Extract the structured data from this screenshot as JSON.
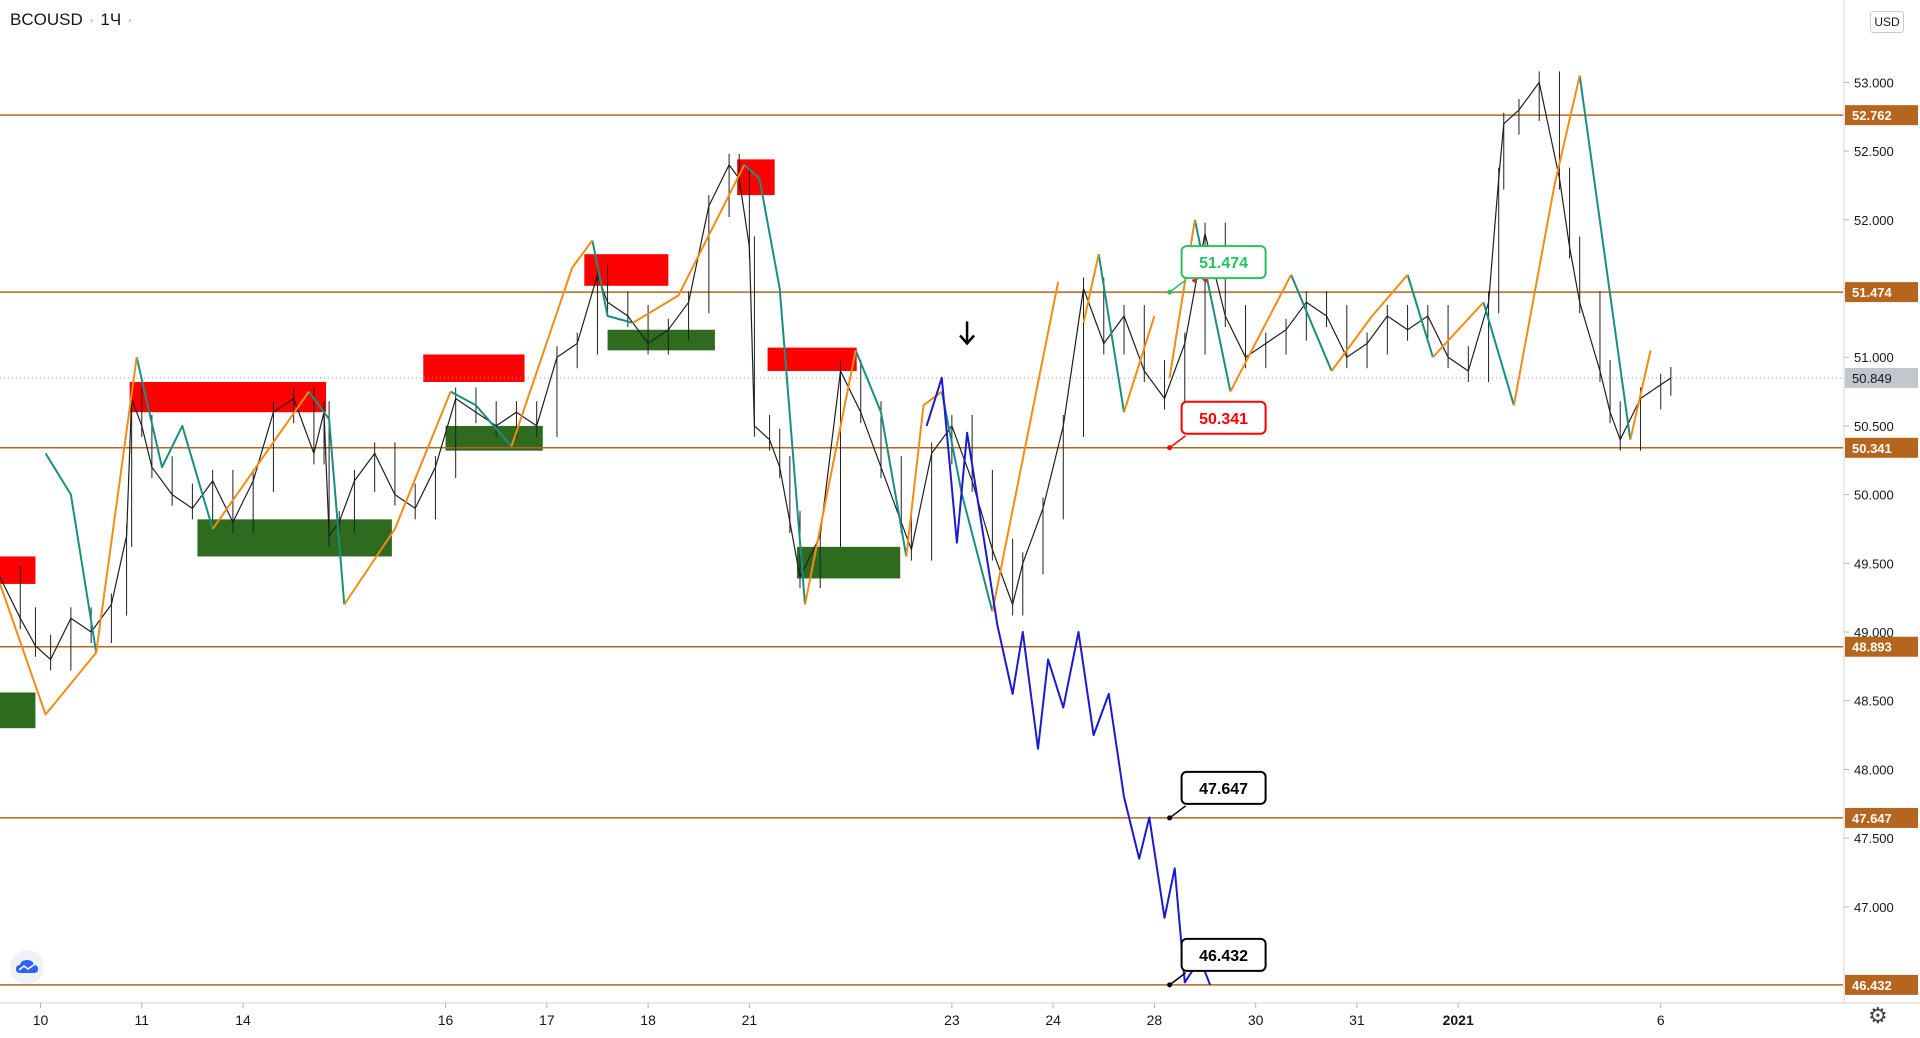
{
  "header": {
    "symbol": "BCOUSD",
    "interval": "1Ч",
    "currency": "USD"
  },
  "icons": {
    "logo": "tradingview-cloud-icon",
    "settings": "gear-icon",
    "arrow": "down-arrow-icon",
    "cancel": "red-x-icon"
  },
  "chart_data": {
    "type": "line",
    "title": "",
    "xlabel": "",
    "ylabel": "",
    "y_tick_labels": [
      "53.000",
      "52.500",
      "52.000",
      "51.500",
      "51.000",
      "50.500",
      "50.000",
      "49.500",
      "49.000",
      "48.500",
      "48.000",
      "47.500",
      "47.000"
    ],
    "y_ticks": [
      53.0,
      52.5,
      52.0,
      51.5,
      51.0,
      50.5,
      50.0,
      49.5,
      49.0,
      48.5,
      48.0,
      47.5,
      47.0
    ],
    "ylim": [
      46.3,
      53.6
    ],
    "x_tick_labels": [
      "10",
      "11",
      "14",
      "16",
      "17",
      "18",
      "21",
      "23",
      "24",
      "28",
      "30",
      "31",
      "2021",
      "6"
    ],
    "x_ticks": [
      0,
      1,
      2,
      4,
      5,
      6,
      7,
      9,
      10,
      11,
      12,
      13,
      14,
      16
    ],
    "xlim": [
      -0.4,
      17.8
    ],
    "current_price": {
      "value": 50.849,
      "label": "50.849"
    },
    "levels": [
      {
        "value": 52.762,
        "label": "52.762"
      },
      {
        "value": 51.474,
        "label": "51.474"
      },
      {
        "value": 50.341,
        "label": "50.341"
      },
      {
        "value": 48.893,
        "label": "48.893"
      },
      {
        "value": 47.647,
        "label": "47.647"
      },
      {
        "value": 46.432,
        "label": "46.432"
      }
    ],
    "callouts": [
      {
        "x": 11.15,
        "y": 51.474,
        "text": "51.474",
        "color": "#22c55e"
      },
      {
        "x": 11.15,
        "y": 50.341,
        "text": "50.341",
        "color": "#ff0000"
      },
      {
        "x": 11.15,
        "y": 47.647,
        "text": "47.647",
        "color": "#000000"
      },
      {
        "x": 11.15,
        "y": 46.432,
        "text": "46.432",
        "color": "#000000"
      }
    ],
    "supply_zones": [
      {
        "x0": -0.4,
        "x1": -0.05,
        "y0": 49.35,
        "y1": 49.55
      },
      {
        "x0": 0.88,
        "x1": 2.82,
        "y0": 50.6,
        "y1": 50.82
      },
      {
        "x0": 3.78,
        "x1": 4.78,
        "y0": 50.82,
        "y1": 51.02
      },
      {
        "x0": 5.37,
        "x1": 6.2,
        "y0": 51.52,
        "y1": 51.75
      },
      {
        "x0": 6.88,
        "x1": 7.25,
        "y0": 52.18,
        "y1": 52.44
      },
      {
        "x0": 7.18,
        "x1": 8.06,
        "y0": 50.9,
        "y1": 51.07
      }
    ],
    "demand_zones": [
      {
        "x0": -0.4,
        "x1": -0.05,
        "y0": 48.3,
        "y1": 48.56
      },
      {
        "x0": 1.55,
        "x1": 3.47,
        "y0": 49.55,
        "y1": 49.82
      },
      {
        "x0": 4.0,
        "x1": 4.96,
        "y0": 50.32,
        "y1": 50.5
      },
      {
        "x0": 5.6,
        "x1": 6.66,
        "y0": 51.05,
        "y1": 51.2
      },
      {
        "x0": 7.47,
        "x1": 8.49,
        "y0": 49.39,
        "y1": 49.62
      }
    ],
    "price_path": {
      "x": [
        -0.4,
        -0.2,
        -0.05,
        0.1,
        0.3,
        0.5,
        0.7,
        0.85,
        0.9,
        1.0,
        1.1,
        1.3,
        1.5,
        1.7,
        1.9,
        2.1,
        2.3,
        2.5,
        2.7,
        2.8,
        2.85,
        2.95,
        3.1,
        3.3,
        3.5,
        3.7,
        3.9,
        4.1,
        4.3,
        4.5,
        4.7,
        4.9,
        5.1,
        5.3,
        5.5,
        5.6,
        5.8,
        6.0,
        6.2,
        6.4,
        6.6,
        6.8,
        6.9,
        7.0,
        7.05,
        7.2,
        7.3,
        7.4,
        7.5,
        7.7,
        7.9,
        8.1,
        8.3,
        8.5,
        8.6,
        8.8,
        9.0,
        9.2,
        9.4,
        9.6,
        9.7,
        9.9,
        10.1,
        10.3,
        10.5,
        10.7,
        10.9,
        11.1,
        11.3,
        11.5,
        11.7,
        11.9,
        12.1,
        12.3,
        12.5,
        12.7,
        12.9,
        13.1,
        13.3,
        13.5,
        13.7,
        13.9,
        14.1,
        14.3,
        14.4,
        14.45,
        14.6,
        14.8,
        15.0,
        15.1,
        15.2,
        15.4,
        15.5,
        15.6,
        15.8,
        16.0,
        16.1
      ],
      "y": [
        49.4,
        49.1,
        48.9,
        48.8,
        49.1,
        49.0,
        49.2,
        49.7,
        50.7,
        50.5,
        50.2,
        50.0,
        49.9,
        50.1,
        49.8,
        50.1,
        50.6,
        50.7,
        50.3,
        50.6,
        49.7,
        49.8,
        50.1,
        50.3,
        50.0,
        49.9,
        50.2,
        50.7,
        50.6,
        50.5,
        50.6,
        50.5,
        51.0,
        51.1,
        51.6,
        51.4,
        51.3,
        51.1,
        51.2,
        51.4,
        52.1,
        52.4,
        52.3,
        51.8,
        50.5,
        50.4,
        50.2,
        49.8,
        49.4,
        49.7,
        50.9,
        50.6,
        50.2,
        49.8,
        49.6,
        50.3,
        50.5,
        50.1,
        49.6,
        49.2,
        49.5,
        49.9,
        50.5,
        51.5,
        51.1,
        51.3,
        50.9,
        50.7,
        51.1,
        51.9,
        51.3,
        51.0,
        51.1,
        51.2,
        51.4,
        51.3,
        51.0,
        51.1,
        51.3,
        51.2,
        51.3,
        51.0,
        50.9,
        51.4,
        52.3,
        52.7,
        52.8,
        53.0,
        52.3,
        51.8,
        51.4,
        50.9,
        50.6,
        50.4,
        50.7,
        50.8,
        50.849
      ]
    },
    "zigzag_up": [
      [
        [
          -0.4,
          49.35
        ],
        [
          0.05,
          48.4
        ],
        [
          0.55,
          48.85
        ],
        [
          0.95,
          51.0
        ]
      ],
      [
        [
          1.7,
          49.75
        ],
        [
          2.65,
          50.75
        ]
      ],
      [
        [
          3.0,
          49.2
        ],
        [
          3.5,
          49.75
        ],
        [
          4.05,
          50.75
        ]
      ],
      [
        [
          4.65,
          50.35
        ],
        [
          5.25,
          51.65
        ],
        [
          5.45,
          51.85
        ]
      ],
      [
        [
          5.85,
          51.25
        ],
        [
          6.3,
          51.45
        ],
        [
          6.95,
          52.4
        ]
      ],
      [
        [
          7.55,
          49.2
        ],
        [
          8.05,
          51.05
        ]
      ],
      [
        [
          8.55,
          49.55
        ],
        [
          8.72,
          50.65
        ],
        [
          8.9,
          50.75
        ]
      ],
      [
        [
          9.4,
          49.15
        ],
        [
          10.05,
          51.55
        ]
      ],
      [
        [
          10.3,
          51.25
        ],
        [
          10.45,
          51.75
        ]
      ],
      [
        [
          10.7,
          50.6
        ],
        [
          11.0,
          51.3
        ]
      ],
      [
        [
          11.15,
          50.85
        ],
        [
          11.4,
          52.0
        ]
      ],
      [
        [
          11.75,
          50.75
        ],
        [
          12.35,
          51.6
        ]
      ],
      [
        [
          12.75,
          50.9
        ],
        [
          13.15,
          51.3
        ],
        [
          13.5,
          51.6
        ]
      ],
      [
        [
          13.75,
          51.0
        ],
        [
          14.25,
          51.4
        ]
      ],
      [
        [
          14.55,
          50.65
        ],
        [
          14.95,
          52.25
        ],
        [
          15.2,
          53.05
        ]
      ],
      [
        [
          15.7,
          50.4
        ],
        [
          15.9,
          51.05
        ]
      ]
    ],
    "zigzag_down": [
      [
        [
          0.05,
          50.3
        ],
        [
          0.3,
          50.0
        ],
        [
          0.55,
          48.85
        ]
      ],
      [
        [
          0.95,
          51.0
        ],
        [
          1.2,
          50.2
        ],
        [
          1.4,
          50.5
        ],
        [
          1.7,
          49.75
        ]
      ],
      [
        [
          2.65,
          50.75
        ],
        [
          2.85,
          50.55
        ],
        [
          3.0,
          49.2
        ]
      ],
      [
        [
          4.05,
          50.75
        ],
        [
          4.3,
          50.65
        ],
        [
          4.65,
          50.35
        ]
      ],
      [
        [
          5.45,
          51.85
        ],
        [
          5.6,
          51.3
        ],
        [
          5.85,
          51.25
        ]
      ],
      [
        [
          6.95,
          52.4
        ],
        [
          7.1,
          52.3
        ],
        [
          7.3,
          51.5
        ],
        [
          7.55,
          49.2
        ]
      ],
      [
        [
          8.05,
          51.05
        ],
        [
          8.3,
          50.6
        ],
        [
          8.55,
          49.55
        ]
      ],
      [
        [
          8.9,
          50.75
        ],
        [
          9.1,
          50.0
        ],
        [
          9.4,
          49.15
        ]
      ],
      [
        [
          10.45,
          51.75
        ],
        [
          10.7,
          50.6
        ]
      ],
      [
        [
          11.4,
          52.0
        ],
        [
          11.75,
          50.75
        ]
      ],
      [
        [
          12.35,
          51.6
        ],
        [
          12.75,
          50.9
        ]
      ],
      [
        [
          13.5,
          51.6
        ],
        [
          13.75,
          51.0
        ]
      ],
      [
        [
          14.25,
          51.4
        ],
        [
          14.55,
          50.65
        ]
      ],
      [
        [
          15.2,
          53.05
        ],
        [
          15.7,
          50.4
        ]
      ]
    ],
    "projection": {
      "x": [
        8.75,
        8.9,
        9.05,
        9.15,
        9.3,
        9.45,
        9.6,
        9.7,
        9.85,
        9.95,
        10.1,
        10.25,
        10.4,
        10.55,
        10.7,
        10.85,
        10.95,
        11.1,
        11.2,
        11.3,
        11.45,
        11.55
      ],
      "y": [
        50.5,
        50.85,
        49.65,
        50.45,
        49.75,
        49.05,
        48.55,
        49.0,
        48.15,
        48.8,
        48.45,
        49.0,
        48.25,
        48.55,
        47.8,
        47.35,
        47.65,
        46.92,
        47.28,
        46.45,
        46.62,
        46.432
      ]
    },
    "annotations": [
      {
        "type": "down-arrow",
        "x": 9.15,
        "y": 51.1
      },
      {
        "type": "x-mark",
        "x": 11.45,
        "y": 51.6
      }
    ]
  }
}
